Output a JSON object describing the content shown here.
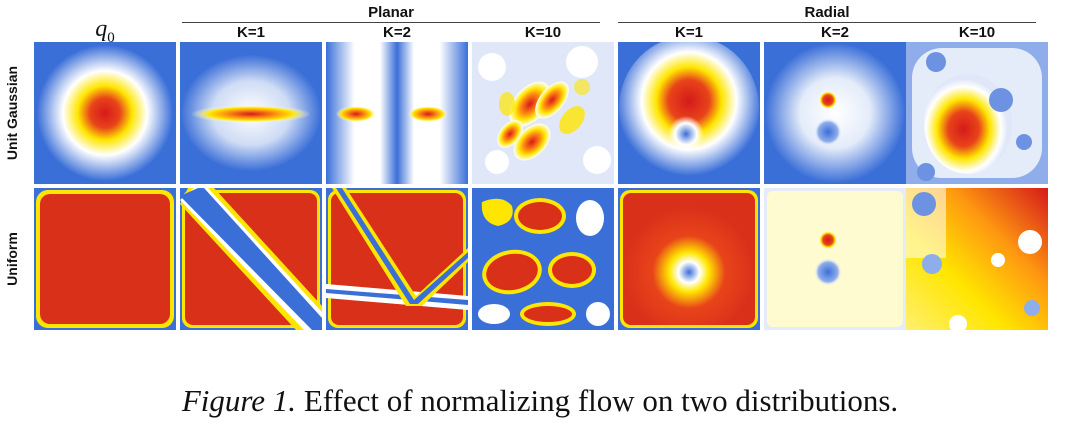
{
  "groups": {
    "planar": "Planar",
    "radial": "Radial"
  },
  "columns": {
    "q0": {
      "symbol": "q",
      "subscript": "0"
    },
    "planar_k1": "K=1",
    "planar_k2": "K=2",
    "planar_k10": "K=10",
    "radial_k1": "K=1",
    "radial_k2": "K=2",
    "radial_k10": "K=10"
  },
  "rows": {
    "gaussian": "Unit Gaussian",
    "uniform": "Uniform"
  },
  "caption": {
    "label": "Figure 1.",
    "text": "Effect of normalizing flow on two distributions."
  },
  "colors": {
    "low": "#3b6fd8",
    "mid": "#ffffff",
    "warm": "#ffe600",
    "high": "#d51a1a"
  }
}
